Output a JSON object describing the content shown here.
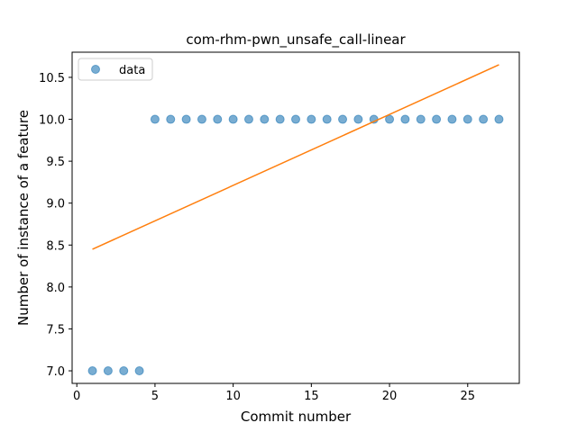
{
  "chart_data": {
    "type": "scatter",
    "title": "com-rhm-pwn_unsafe_call-linear",
    "xlabel": "Commit number",
    "ylabel": "Number of instance of a feature",
    "xlim": [
      -0.3,
      28.3
    ],
    "ylim": [
      6.85,
      10.8
    ],
    "xticks": [
      0,
      5,
      10,
      15,
      20,
      25
    ],
    "yticks": [
      7.0,
      7.5,
      8.0,
      8.5,
      9.0,
      9.5,
      10.0,
      10.5
    ],
    "ytick_labels": [
      "7.0",
      "7.5",
      "8.0",
      "8.5",
      "9.0",
      "9.5",
      "10.0",
      "10.5"
    ],
    "grid": false,
    "legend_position": "top-left",
    "series": [
      {
        "name": "data",
        "kind": "scatter",
        "color": "#1f77b4",
        "x": [
          1,
          2,
          3,
          4,
          5,
          6,
          7,
          8,
          9,
          10,
          11,
          12,
          13,
          14,
          15,
          16,
          17,
          18,
          19,
          20,
          21,
          22,
          23,
          24,
          25,
          26,
          27
        ],
        "y": [
          7,
          7,
          7,
          7,
          10,
          10,
          10,
          10,
          10,
          10,
          10,
          10,
          10,
          10,
          10,
          10,
          10,
          10,
          10,
          10,
          10,
          10,
          10,
          10,
          10,
          10,
          10
        ]
      },
      {
        "kind": "line",
        "color": "#ff7f0e",
        "x": [
          1,
          27
        ],
        "y": [
          8.45,
          10.65
        ]
      }
    ]
  }
}
